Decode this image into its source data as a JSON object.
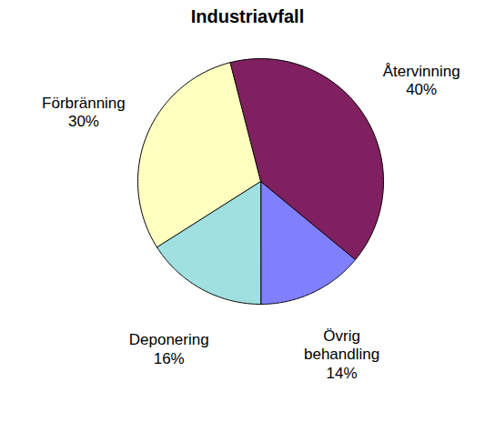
{
  "chart_data": {
    "type": "pie",
    "title": "Industriavfall",
    "categories": [
      "Övrig behandling",
      "Återvinning",
      "Förbränning",
      "Deponering"
    ],
    "values": [
      14,
      40,
      30,
      16
    ],
    "value_labels": [
      "14%",
      "40%",
      "30%",
      "16%"
    ],
    "colors": [
      "#8080ff",
      "#802060",
      "#ffffc0",
      "#a0e0e0"
    ],
    "data_labels": true
  }
}
